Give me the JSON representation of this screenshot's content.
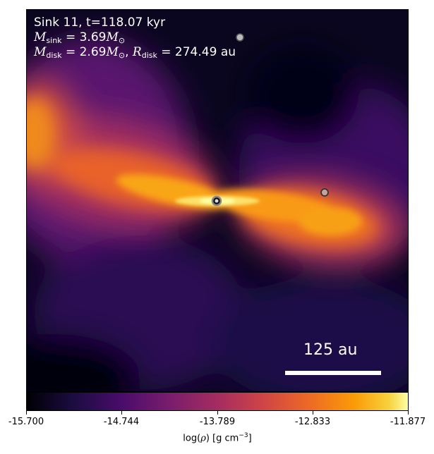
{
  "image": {
    "kind": "simulation density slice",
    "colormap": "inferno",
    "background_color": "#000004"
  },
  "annotation": {
    "line1": "Sink 11, t=118.07 kyr",
    "sink_mass_label": "M",
    "sink_mass_sub": "sink",
    "sink_mass_value": " = 3.69",
    "sink_mass_unit": "M",
    "sink_mass_unit_sub": "⊙",
    "disk_mass_label": "M",
    "disk_mass_sub": "disk",
    "disk_mass_value": " = 2.69",
    "disk_mass_unit": "M",
    "disk_mass_unit_sub": "⊙",
    "disk_radius_label": "R",
    "disk_radius_sub": "disk",
    "disk_radius_value": " = 274.49 au"
  },
  "scale_bar": {
    "label": "125 au"
  },
  "colorbar": {
    "ticks": [
      "-15.700",
      "-14.744",
      "-13.789",
      "-12.833",
      "-11.877"
    ],
    "label_prefix": "log(",
    "label_rho": "ρ",
    "label_mid": ") [g cm",
    "label_exp": "−3",
    "label_suffix": "]"
  },
  "sinks": [
    "central-sink",
    "upper-sink",
    "right-sink"
  ]
}
